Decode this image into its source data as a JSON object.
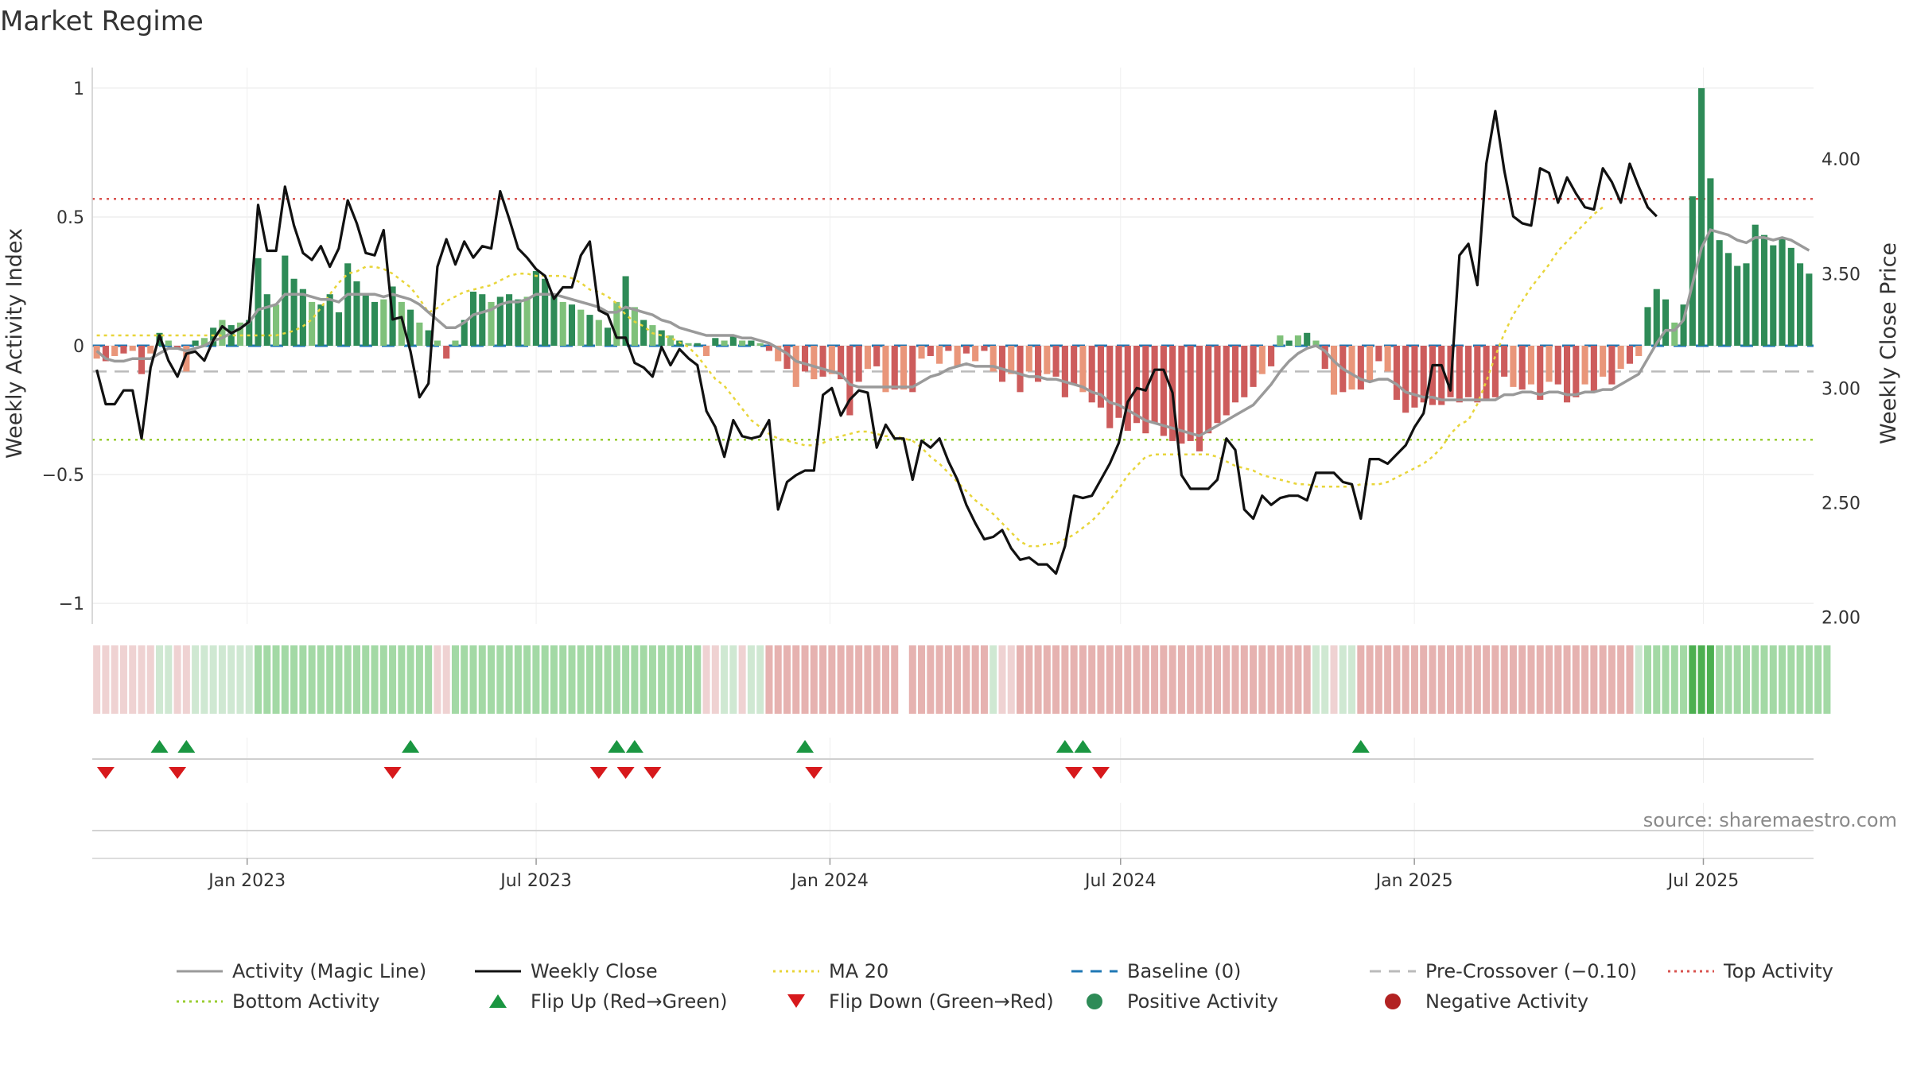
{
  "title": "Market Regime",
  "source": "source: sharemaestro.com",
  "colors": {
    "strong_green": "#2e8b57",
    "light_green": "#7fc17a",
    "strong_red": "#cd5c5c",
    "light_red": "#e9967a",
    "close": "#111111",
    "magic": "#9a9a9a",
    "ma20": "#e8d53a",
    "baseline": "#1f77b4",
    "precross": "#bbbbbb",
    "top": "#d9534f",
    "bottom": "#9acd32",
    "flip_up": "#1a9641",
    "flip_down": "#d7191c",
    "grid": "#e6e6e6"
  },
  "chart_data": {
    "type": "bar",
    "title": "Market Regime",
    "x_axis": {
      "ticks": [
        "Jan 2023",
        "Jul 2023",
        "Jan 2024",
        "Jul 2024",
        "Jan 2025",
        "Jul 2025"
      ],
      "range": [
        "2022-09-26",
        "2025-09-08"
      ],
      "frequency": "weekly"
    },
    "y_left": {
      "label": "Weekly Activity Index",
      "range": [
        -1.08,
        1.08
      ],
      "ticks": [
        "1",
        "0.5",
        "0",
        "−0.5",
        "−1"
      ],
      "tick_values": [
        1,
        0.5,
        0,
        -0.5,
        -1
      ]
    },
    "y_right": {
      "label": "Weekly Close Price",
      "range": [
        1.97,
        4.4
      ],
      "ticks": [
        "4.00",
        "3.50",
        "3.00",
        "2.50",
        "2.00"
      ],
      "tick_values": [
        4.0,
        3.5,
        3.0,
        2.5,
        2.0
      ]
    },
    "reference_lines": {
      "baseline": 0,
      "pre_crossover": -0.1,
      "top_activity": 0.57,
      "bottom_activity": -0.365
    },
    "activity": [
      -0.05,
      -0.06,
      -0.04,
      -0.03,
      -0.02,
      -0.11,
      -0.03,
      0.05,
      0.02,
      -0.01,
      -0.1,
      0.02,
      0.03,
      0.07,
      0.1,
      0.08,
      0.09,
      0.1,
      0.34,
      0.2,
      0.16,
      0.35,
      0.26,
      0.22,
      0.17,
      0.16,
      0.2,
      0.13,
      0.32,
      0.25,
      0.2,
      0.17,
      0.18,
      0.23,
      0.17,
      0.14,
      0.09,
      0.06,
      0.02,
      -0.05,
      0.02,
      0.1,
      0.21,
      0.2,
      0.17,
      0.19,
      0.2,
      0.18,
      0.19,
      0.29,
      0.26,
      0.2,
      0.17,
      0.16,
      0.14,
      0.12,
      0.1,
      0.07,
      0.17,
      0.27,
      0.15,
      0.1,
      0.08,
      0.06,
      0.04,
      0.02,
      0.01,
      0.01,
      -0.04,
      0.03,
      0.02,
      0.04,
      0.02,
      0.02,
      0.01,
      -0.02,
      -0.06,
      -0.09,
      -0.16,
      -0.1,
      -0.13,
      -0.12,
      -0.11,
      -0.13,
      -0.27,
      -0.14,
      -0.09,
      -0.08,
      -0.18,
      -0.17,
      -0.17,
      -0.18,
      -0.05,
      -0.04,
      -0.07,
      -0.02,
      -0.08,
      -0.03,
      -0.06,
      -0.02,
      -0.1,
      -0.14,
      -0.11,
      -0.18,
      -0.1,
      -0.14,
      -0.11,
      -0.12,
      -0.2,
      -0.15,
      -0.18,
      -0.22,
      -0.24,
      -0.32,
      -0.28,
      -0.33,
      -0.3,
      -0.34,
      -0.3,
      -0.35,
      -0.37,
      -0.38,
      -0.37,
      -0.41,
      -0.34,
      -0.3,
      -0.27,
      -0.22,
      -0.2,
      -0.16,
      -0.11,
      -0.08,
      0.04,
      0.02,
      0.04,
      0.05,
      0.02,
      -0.09,
      -0.19,
      -0.18,
      -0.17,
      -0.17,
      -0.14,
      -0.06,
      -0.1,
      -0.21,
      -0.26,
      -0.24,
      -0.22,
      -0.23,
      -0.23,
      -0.2,
      -0.22,
      -0.2,
      -0.22,
      -0.21,
      -0.2,
      -0.12,
      -0.16,
      -0.17,
      -0.15,
      -0.21,
      -0.14,
      -0.15,
      -0.22,
      -0.2,
      -0.15,
      -0.18,
      -0.12,
      -0.15,
      -0.09,
      -0.07,
      -0.04,
      0.15,
      0.22,
      0.18,
      0.09,
      0.16,
      0.58,
      1.0,
      0.65,
      0.41,
      0.36,
      0.31,
      0.32,
      0.47,
      0.43,
      0.39,
      0.42,
      0.38,
      0.32,
      0.28
    ],
    "weekly_close": [
      3.08,
      2.93,
      2.93,
      2.99,
      2.99,
      2.78,
      3.09,
      3.23,
      3.12,
      3.05,
      3.15,
      3.16,
      3.12,
      3.21,
      3.27,
      3.24,
      3.26,
      3.29,
      3.8,
      3.6,
      3.6,
      3.88,
      3.71,
      3.59,
      3.56,
      3.62,
      3.53,
      3.61,
      3.82,
      3.72,
      3.59,
      3.58,
      3.69,
      3.3,
      3.31,
      3.16,
      2.96,
      3.02,
      3.53,
      3.65,
      3.54,
      3.64,
      3.57,
      3.62,
      3.61,
      3.86,
      3.74,
      3.61,
      3.57,
      3.52,
      3.49,
      3.39,
      3.44,
      3.44,
      3.58,
      3.64,
      3.34,
      3.32,
      3.22,
      3.22,
      3.11,
      3.09,
      3.05,
      3.18,
      3.1,
      3.17,
      3.13,
      3.1,
      2.9,
      2.83,
      2.7,
      2.86,
      2.79,
      2.78,
      2.79,
      2.86,
      2.47,
      2.59,
      2.62,
      2.64,
      2.64,
      2.97,
      3.0,
      2.88,
      2.95,
      2.99,
      2.98,
      2.74,
      2.84,
      2.78,
      2.78,
      2.6,
      2.77,
      2.74,
      2.78,
      2.68,
      2.6,
      2.49,
      2.41,
      2.34,
      2.35,
      2.38,
      2.3,
      2.25,
      2.26,
      2.23,
      2.23,
      2.19,
      2.31,
      2.53,
      2.52,
      2.53,
      2.6,
      2.67,
      2.76,
      2.94,
      3.0,
      2.99,
      3.08,
      3.08,
      2.98,
      2.62,
      2.56,
      2.56,
      2.56,
      2.6,
      2.78,
      2.73,
      2.47,
      2.43,
      2.53,
      2.49,
      2.52,
      2.53,
      2.53,
      2.51,
      2.63,
      2.63,
      2.63,
      2.59,
      2.58,
      2.43,
      2.69,
      2.69,
      2.67,
      2.71,
      2.75,
      2.83,
      2.89,
      3.1,
      3.1,
      2.99,
      3.58,
      3.63,
      3.45,
      3.98,
      4.21,
      3.95,
      3.75,
      3.72,
      3.71,
      3.96,
      3.94,
      3.81,
      3.92,
      3.85,
      3.79,
      3.78,
      3.96,
      3.9,
      3.81,
      3.98,
      3.88,
      3.79,
      3.75
    ],
    "magic_line": [
      -0.02,
      -0.05,
      -0.06,
      -0.06,
      -0.05,
      -0.05,
      -0.05,
      -0.03,
      -0.01,
      -0.01,
      -0.02,
      -0.01,
      0.0,
      0.02,
      0.03,
      0.05,
      0.07,
      0.09,
      0.14,
      0.15,
      0.16,
      0.2,
      0.2,
      0.2,
      0.19,
      0.18,
      0.18,
      0.17,
      0.2,
      0.2,
      0.2,
      0.2,
      0.19,
      0.2,
      0.19,
      0.18,
      0.16,
      0.13,
      0.1,
      0.07,
      0.07,
      0.09,
      0.12,
      0.13,
      0.14,
      0.16,
      0.17,
      0.17,
      0.18,
      0.2,
      0.2,
      0.2,
      0.19,
      0.18,
      0.17,
      0.16,
      0.15,
      0.13,
      0.13,
      0.15,
      0.14,
      0.13,
      0.12,
      0.1,
      0.09,
      0.07,
      0.06,
      0.05,
      0.04,
      0.04,
      0.04,
      0.04,
      0.03,
      0.03,
      0.02,
      0.01,
      -0.01,
      -0.03,
      -0.06,
      -0.07,
      -0.08,
      -0.09,
      -0.1,
      -0.11,
      -0.15,
      -0.16,
      -0.16,
      -0.16,
      -0.16,
      -0.16,
      -0.16,
      -0.16,
      -0.14,
      -0.12,
      -0.11,
      -0.09,
      -0.08,
      -0.07,
      -0.08,
      -0.08,
      -0.08,
      -0.09,
      -0.1,
      -0.11,
      -0.12,
      -0.12,
      -0.13,
      -0.13,
      -0.14,
      -0.15,
      -0.16,
      -0.18,
      -0.19,
      -0.22,
      -0.23,
      -0.25,
      -0.27,
      -0.29,
      -0.3,
      -0.31,
      -0.32,
      -0.33,
      -0.34,
      -0.35,
      -0.33,
      -0.31,
      -0.29,
      -0.27,
      -0.25,
      -0.23,
      -0.19,
      -0.15,
      -0.1,
      -0.06,
      -0.03,
      -0.01,
      0.0,
      -0.02,
      -0.06,
      -0.09,
      -0.11,
      -0.13,
      -0.14,
      -0.13,
      -0.13,
      -0.15,
      -0.18,
      -0.19,
      -0.2,
      -0.2,
      -0.21,
      -0.21,
      -0.21,
      -0.21,
      -0.21,
      -0.21,
      -0.21,
      -0.19,
      -0.19,
      -0.18,
      -0.18,
      -0.19,
      -0.18,
      -0.18,
      -0.19,
      -0.19,
      -0.18,
      -0.18,
      -0.17,
      -0.17,
      -0.15,
      -0.13,
      -0.11,
      -0.05,
      0.01,
      0.06,
      0.06,
      0.1,
      0.24,
      0.38,
      0.45,
      0.44,
      0.43,
      0.41,
      0.4,
      0.42,
      0.42,
      0.41,
      0.42,
      0.41,
      0.39,
      0.37
    ],
    "ma20": [
      3.23,
      3.23,
      3.23,
      3.23,
      3.23,
      3.23,
      3.23,
      3.23,
      3.23,
      3.23,
      3.23,
      3.23,
      3.23,
      3.23,
      3.23,
      3.23,
      3.23,
      3.23,
      3.23,
      3.23,
      3.23,
      3.24,
      3.25,
      3.27,
      3.3,
      3.35,
      3.41,
      3.46,
      3.5,
      3.51,
      3.53,
      3.53,
      3.52,
      3.5,
      3.47,
      3.44,
      3.39,
      3.33,
      3.35,
      3.38,
      3.4,
      3.42,
      3.43,
      3.44,
      3.45,
      3.47,
      3.49,
      3.5,
      3.5,
      3.49,
      3.49,
      3.49,
      3.49,
      3.48,
      3.46,
      3.43,
      3.42,
      3.4,
      3.37,
      3.32,
      3.29,
      3.27,
      3.24,
      3.23,
      3.22,
      3.2,
      3.18,
      3.14,
      3.09,
      3.04,
      3.01,
      2.96,
      2.91,
      2.86,
      2.83,
      2.8,
      2.78,
      2.77,
      2.76,
      2.75,
      2.75,
      2.76,
      2.78,
      2.79,
      2.8,
      2.81,
      2.81,
      2.8,
      2.79,
      2.79,
      2.78,
      2.77,
      2.74,
      2.7,
      2.67,
      2.63,
      2.59,
      2.55,
      2.51,
      2.48,
      2.45,
      2.41,
      2.37,
      2.33,
      2.31,
      2.31,
      2.32,
      2.32,
      2.34,
      2.36,
      2.39,
      2.42,
      2.46,
      2.51,
      2.56,
      2.62,
      2.66,
      2.7,
      2.71,
      2.71,
      2.71,
      2.71,
      2.71,
      2.71,
      2.71,
      2.7,
      2.68,
      2.66,
      2.65,
      2.64,
      2.62,
      2.61,
      2.6,
      2.59,
      2.58,
      2.58,
      2.57,
      2.57,
      2.57,
      2.57,
      2.57,
      2.58,
      2.58,
      2.58,
      2.59,
      2.61,
      2.63,
      2.65,
      2.67,
      2.7,
      2.74,
      2.8,
      2.84,
      2.86,
      2.93,
      3.03,
      3.14,
      3.24,
      3.32,
      3.38,
      3.44,
      3.49,
      3.54,
      3.6,
      3.64,
      3.68,
      3.72,
      3.76,
      3.79
    ],
    "regime_strip": [
      "lr",
      "lr",
      "lr",
      "lr",
      "lr",
      "lr",
      "lr",
      "lg",
      "lg",
      "lr",
      "lr",
      "lg",
      "lg",
      "lg",
      "lg",
      "lg",
      "lg",
      "lg",
      "g",
      "g",
      "g",
      "g",
      "g",
      "g",
      "g",
      "g",
      "g",
      "g",
      "g",
      "g",
      "g",
      "g",
      "g",
      "g",
      "g",
      "g",
      "g",
      "g",
      "lr",
      "lr",
      "g",
      "g",
      "g",
      "g",
      "g",
      "g",
      "g",
      "g",
      "g",
      "g",
      "g",
      "g",
      "g",
      "g",
      "g",
      "g",
      "g",
      "g",
      "g",
      "g",
      "g",
      "g",
      "g",
      "g",
      "g",
      "g",
      "g",
      "g",
      "lr",
      "lr",
      "lg",
      "lg",
      "lr",
      "lg",
      "lg",
      "r",
      "r",
      "r",
      "r",
      "r",
      "r",
      "r",
      "r",
      "r",
      "r",
      "r",
      "r",
      "r",
      "r",
      "r",
      "gap",
      "r",
      "r",
      "r",
      "r",
      "r",
      "r",
      "r",
      "r",
      "r",
      "lg",
      "lr",
      "lr",
      "r",
      "r",
      "r",
      "r",
      "r",
      "r",
      "r",
      "r",
      "r",
      "r",
      "r",
      "r",
      "r",
      "r",
      "r",
      "r",
      "r",
      "r",
      "r",
      "r",
      "r",
      "r",
      "r",
      "r",
      "r",
      "r",
      "r",
      "r",
      "r",
      "r",
      "r",
      "r",
      "r",
      "lg",
      "lg",
      "lr",
      "lg",
      "lg",
      "r",
      "r",
      "r",
      "r",
      "r",
      "r",
      "r",
      "r",
      "r",
      "r",
      "r",
      "r",
      "r",
      "r",
      "r",
      "r",
      "r",
      "r",
      "r",
      "r",
      "r",
      "r",
      "r",
      "r",
      "r",
      "r",
      "r",
      "r",
      "r",
      "r",
      "r",
      "lg",
      "g",
      "g",
      "g",
      "g",
      "g",
      "dg",
      "dg",
      "dg",
      "g",
      "g",
      "g",
      "g",
      "g",
      "g",
      "g",
      "g",
      "g",
      "g",
      "g",
      "g",
      "g"
    ],
    "flip_up_weeks": [
      7,
      10,
      35,
      58,
      60,
      79,
      108,
      110,
      141
    ],
    "flip_down_weeks": [
      1,
      9,
      33,
      56,
      59,
      62,
      80,
      109,
      112
    ]
  },
  "legend": [
    {
      "label": "Activity (Magic Line)",
      "kind": "line",
      "color": "#9a9a9a",
      "dash": "none"
    },
    {
      "label": "Weekly Close",
      "kind": "line",
      "color": "#111111",
      "dash": "none"
    },
    {
      "label": "MA 20",
      "kind": "line",
      "color": "#e8d53a",
      "dash": "dot"
    },
    {
      "label": "Baseline (0)",
      "kind": "line",
      "color": "#1f77b4",
      "dash": "dash"
    },
    {
      "label": "Pre-Crossover (−0.10)",
      "kind": "line",
      "color": "#bbbbbb",
      "dash": "dash"
    },
    {
      "label": "Top Activity",
      "kind": "line",
      "color": "#d9534f",
      "dash": "dot"
    },
    {
      "label": "Bottom Activity",
      "kind": "line",
      "color": "#9acd32",
      "dash": "dot"
    },
    {
      "label": "Flip Up (Red→Green)",
      "kind": "tri-up",
      "color": "#1a9641"
    },
    {
      "label": "Flip Down (Green→Red)",
      "kind": "tri-down",
      "color": "#d7191c"
    },
    {
      "label": "Positive Activity",
      "kind": "dot",
      "color": "#2e8b57"
    },
    {
      "label": "Negative Activity",
      "kind": "dot",
      "color": "#b22222"
    }
  ]
}
